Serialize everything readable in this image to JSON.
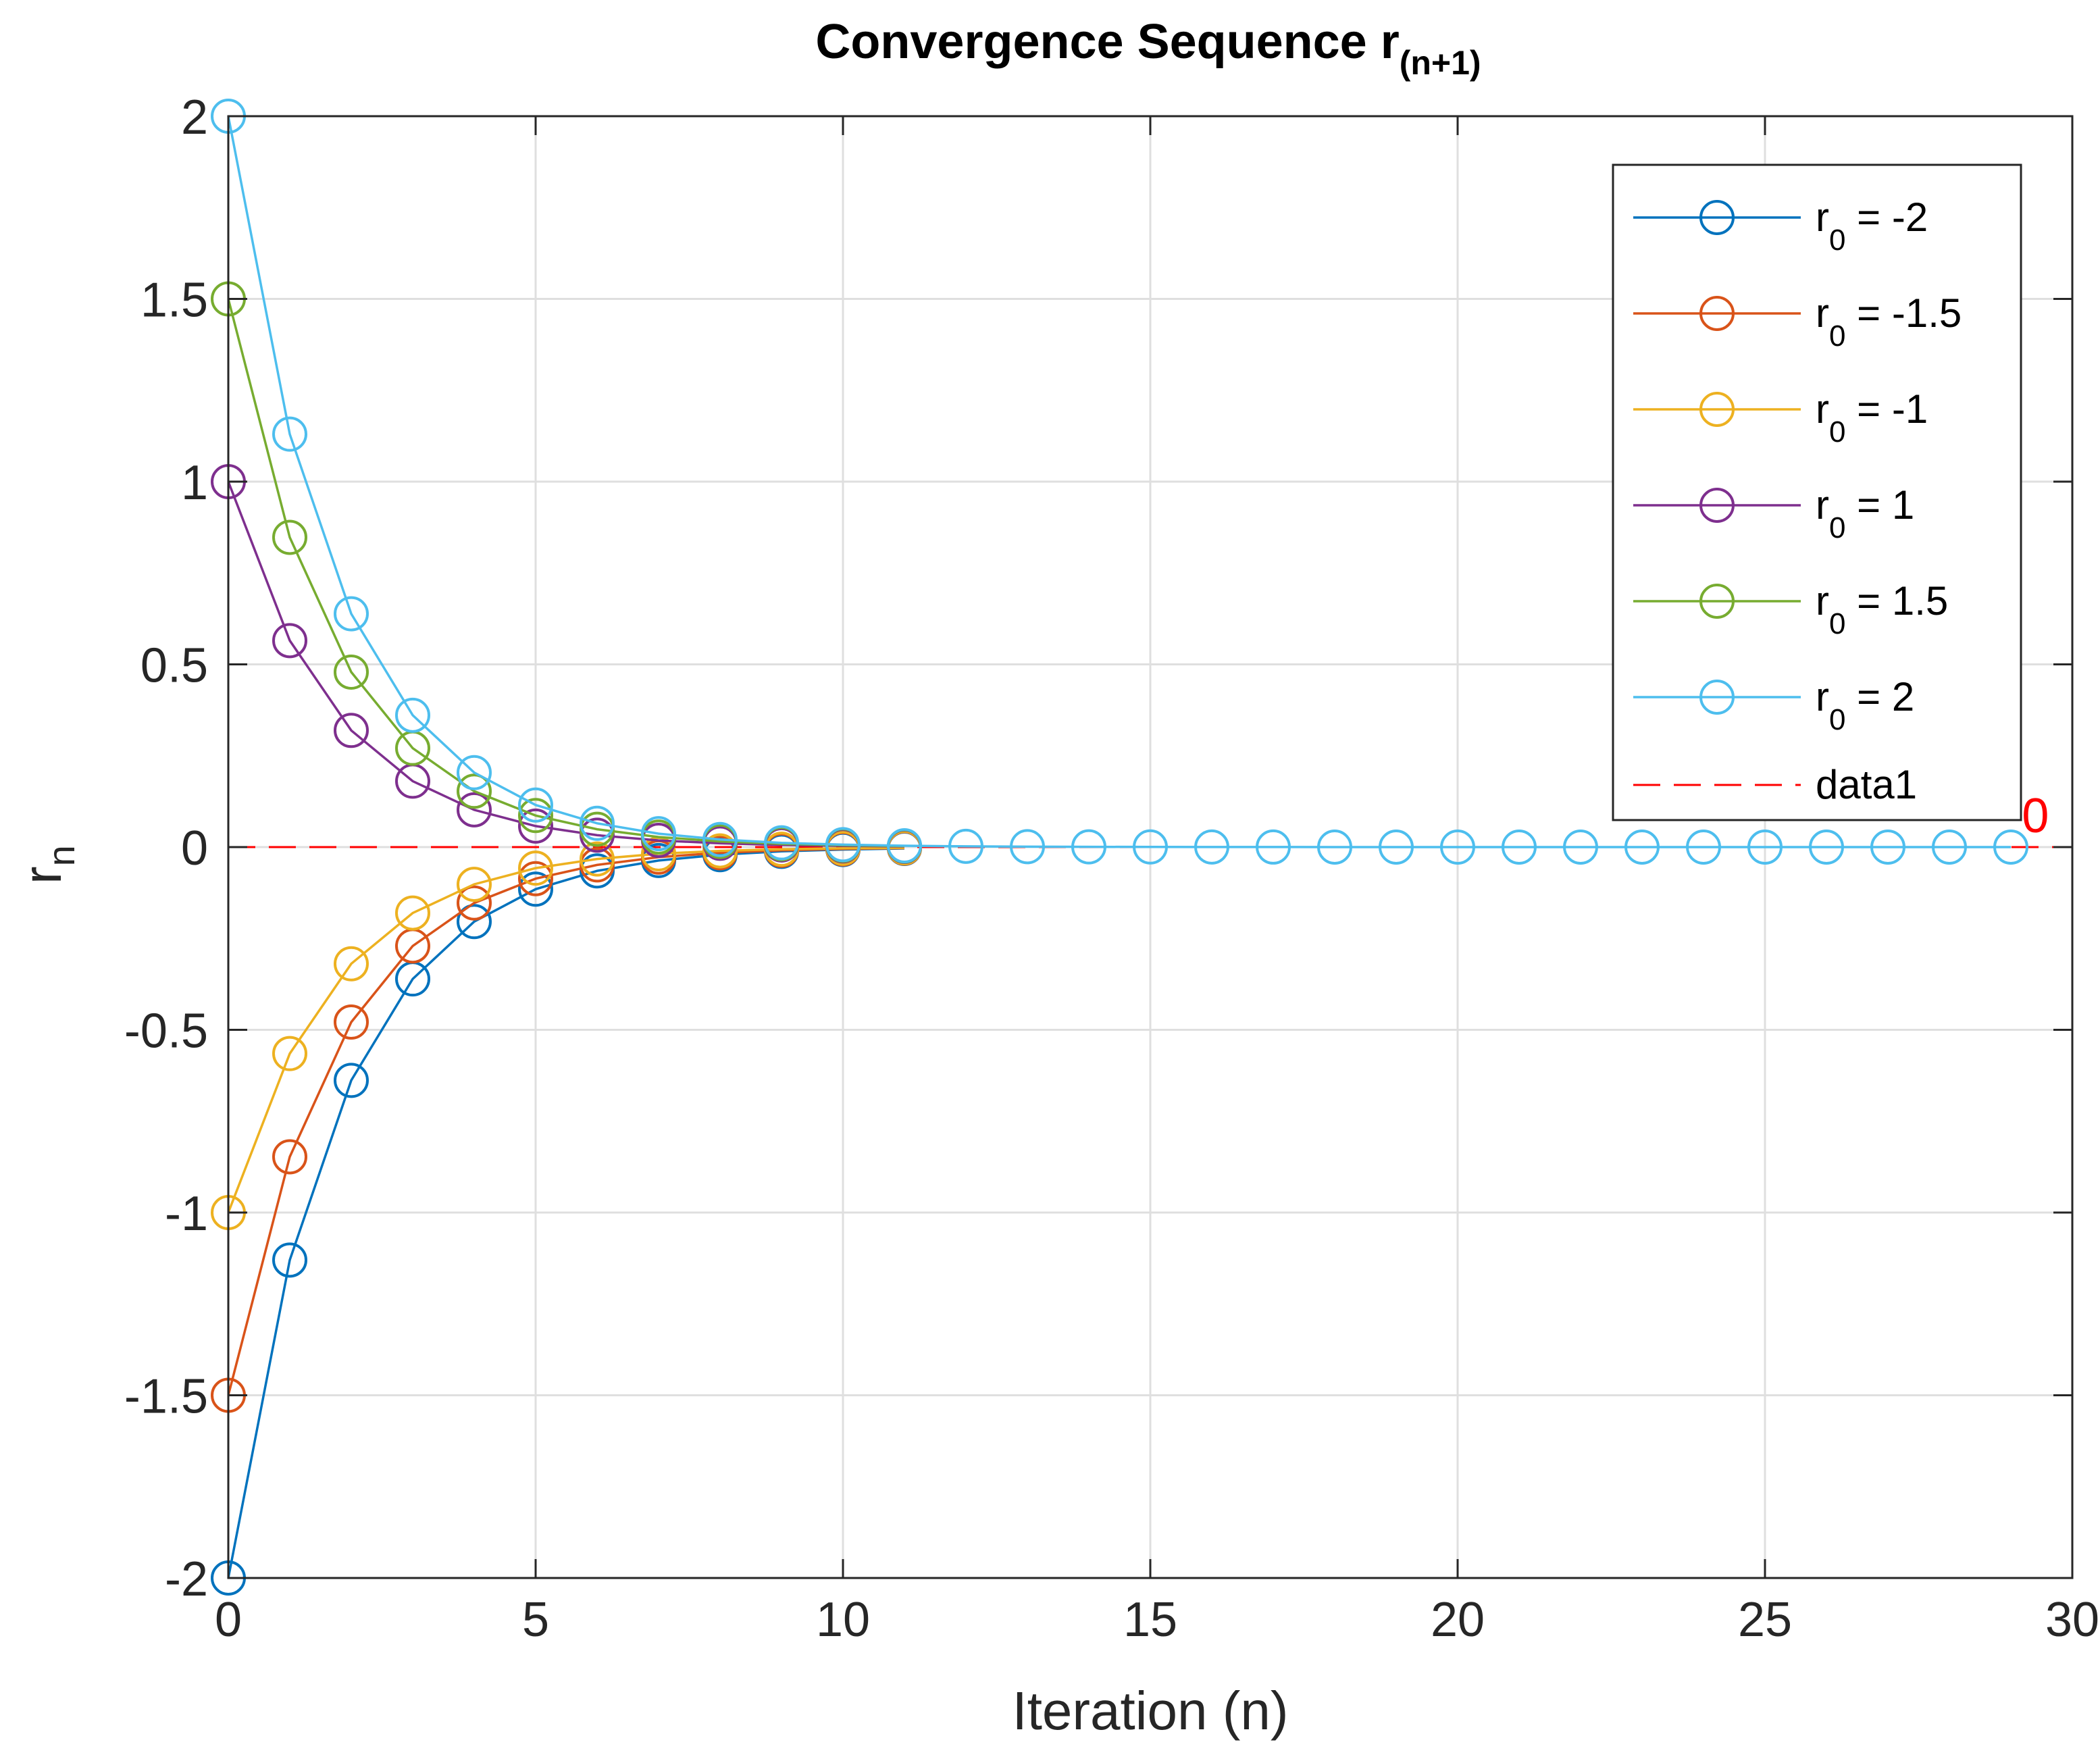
{
  "chart_data": {
    "type": "line",
    "title": "Convergence Sequence r",
    "title_subscript": "(n+1)",
    "xlabel": "Iteration (n)",
    "ylabel": "r",
    "ylabel_subscript": "n",
    "xlim": [
      0,
      30
    ],
    "ylim": [
      -2,
      2
    ],
    "xticks": [
      0,
      5,
      10,
      15,
      20,
      25,
      30
    ],
    "xtick_labels": [
      "0",
      "5",
      "10",
      "15",
      "20",
      "25",
      "30"
    ],
    "yticks": [
      -2,
      -1.5,
      -1,
      -0.5,
      0,
      0.5,
      1,
      1.5,
      2
    ],
    "ytick_labels": [
      "-2",
      "-1.5",
      "-1",
      "-0.5",
      "0",
      "0.5",
      "1",
      "1.5",
      "2"
    ],
    "grid": true,
    "legend_position": "top-right",
    "annotation": {
      "text": "0",
      "x": 29.4,
      "y": 0.05
    },
    "series": [
      {
        "name": "r0 = -2",
        "legend_prefix": "r",
        "legend_sub": "0",
        "legend_suffix": " = -2",
        "color": "#0072BD",
        "marker": "circle",
        "r0": -2
      },
      {
        "name": "r0 = -1.5",
        "legend_prefix": "r",
        "legend_sub": "0",
        "legend_suffix": " = -1.5",
        "color": "#D95319",
        "marker": "circle",
        "r0": -1.5
      },
      {
        "name": "r0 = -1",
        "legend_prefix": "r",
        "legend_sub": "0",
        "legend_suffix": " = -1",
        "color": "#EDB120",
        "marker": "circle",
        "r0": -1
      },
      {
        "name": "r0 = 1",
        "legend_prefix": "r",
        "legend_sub": "0",
        "legend_suffix": " = 1",
        "color": "#7E2F8E",
        "marker": "circle",
        "r0": 1
      },
      {
        "name": "r0 = 1.5",
        "legend_prefix": "r",
        "legend_sub": "0",
        "legend_suffix": " = 1.5",
        "color": "#77AC30",
        "marker": "circle",
        "r0": 1.5
      },
      {
        "name": "r0 = 2",
        "legend_prefix": "r",
        "legend_sub": "0",
        "legend_suffix": " = 2",
        "color": "#4DBEEE",
        "marker": "circle",
        "r0": 2
      }
    ],
    "reference_line": {
      "name": "data1",
      "y": 0,
      "color": "#ff0000",
      "style": "dashed"
    }
  }
}
